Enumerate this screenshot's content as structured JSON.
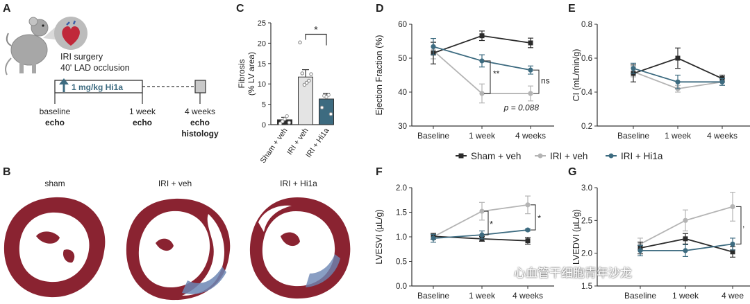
{
  "colors": {
    "sham": "#2b2b2b",
    "veh": "#b4b4b4",
    "hi1a": "#3d6b80",
    "hi1a_bar": "#3d6b80",
    "veh_bar": "#e4e4e4",
    "sham_bar": "#2b2b2b",
    "tissue": "#8a2331",
    "fibrosis": "#6c86b4"
  },
  "panels": {
    "A": {
      "letter": "A",
      "surgery_line1": "IRI surgery",
      "surgery_line2": "40' LAD occlusion",
      "dose": "1 mg/kg Hi1a",
      "t0_line1": "baseline",
      "t0_line2": "echo",
      "t1_line1": "1 week",
      "t1_line2": "echo",
      "t2_line1": "4 weeks",
      "t2_line2": "echo",
      "t2_line3": "histology"
    },
    "B": {
      "letter": "B",
      "labels": [
        "sham",
        "IRI + veh",
        "IRI + Hi1a"
      ]
    },
    "C": {
      "letter": "C"
    },
    "D": {
      "letter": "D"
    },
    "E": {
      "letter": "E"
    },
    "F": {
      "letter": "F"
    },
    "G": {
      "letter": "G"
    }
  },
  "legend": {
    "items": [
      {
        "label": "Sham + veh",
        "color": "#2b2b2b"
      },
      {
        "label": "IRI + veh",
        "color": "#b4b4b4"
      },
      {
        "label": "IRI + Hi1a",
        "color": "#3d6b80"
      }
    ]
  },
  "watermark": "心血管干细胞青年沙龙",
  "chart_data": [
    {
      "id": "C",
      "type": "bar",
      "title": "",
      "ylabel": "Fibrosis\n(% LV area)",
      "ylim": [
        0,
        25
      ],
      "yticks": [
        0,
        5,
        10,
        15,
        20,
        25
      ],
      "categories": [
        "Sham + veh",
        "IRI + veh",
        "IRI + Hi1a"
      ],
      "values": [
        1.2,
        11.7,
        6.3
      ],
      "errors": [
        0.6,
        1.8,
        1.4
      ],
      "points": [
        [
          0.3,
          0.8,
          1.4,
          2.1,
          0.5
        ],
        [
          20.2,
          12.6,
          9.8,
          10.3,
          10.8,
          12.4
        ],
        [
          4.2,
          7.1,
          6.8,
          7.3,
          2.6
        ]
      ],
      "significance": "*"
    },
    {
      "id": "D",
      "type": "line",
      "ylabel": "Ejection Fraction (%)",
      "ylim": [
        30,
        60
      ],
      "yticks": [
        30,
        40,
        50,
        60
      ],
      "categories": [
        "Baseline",
        "1 week",
        "4 weeks"
      ],
      "series": [
        {
          "name": "Sham + veh",
          "values": [
            51.5,
            56.6,
            54.5
          ],
          "errors": [
            3.2,
            1.4,
            1.4
          ]
        },
        {
          "name": "IRI + veh",
          "values": [
            52.2,
            39.6,
            39.6
          ],
          "errors": [
            2.4,
            2.8,
            2.2
          ]
        },
        {
          "name": "IRI + Hi1a",
          "values": [
            53.4,
            49.2,
            46.5
          ],
          "errors": [
            2.4,
            1.8,
            1.2
          ]
        }
      ],
      "annotations": [
        "**",
        "ns",
        "p = 0.088"
      ]
    },
    {
      "id": "E",
      "type": "line",
      "ylabel": "CI (mL/min/g)",
      "ylim": [
        0.2,
        0.8
      ],
      "yticks": [
        0.2,
        0.4,
        0.6,
        0.8
      ],
      "ytick_labels": [
        "0.2",
        "0.4",
        "0.6",
        "0.8"
      ],
      "categories": [
        "Baseline",
        "1 week",
        "4 weeks"
      ],
      "series": [
        {
          "name": "Sham + veh",
          "values": [
            0.51,
            0.6,
            0.48
          ],
          "errors": [
            0.05,
            0.06,
            0.02
          ]
        },
        {
          "name": "IRI + veh",
          "values": [
            0.52,
            0.42,
            0.46
          ],
          "errors": [
            0.03,
            0.02,
            0.02
          ]
        },
        {
          "name": "IRI + Hi1a",
          "values": [
            0.54,
            0.46,
            0.46
          ],
          "errors": [
            0.03,
            0.04,
            0.02
          ]
        }
      ]
    },
    {
      "id": "F",
      "type": "line",
      "ylabel": "LVESVI (µL/g)",
      "ylim": [
        0.0,
        2.0
      ],
      "yticks": [
        0.0,
        0.5,
        1.0,
        1.5,
        2.0
      ],
      "ytick_labels": [
        "0.0",
        "0.5",
        "1.0",
        "1.5",
        "2.0"
      ],
      "categories": [
        "Baseline",
        "1 week",
        "4 weeks"
      ],
      "series": [
        {
          "name": "Sham + veh",
          "values": [
            1.01,
            0.96,
            0.92
          ],
          "errors": [
            0.06,
            0.05,
            0.07
          ]
        },
        {
          "name": "IRI + veh",
          "values": [
            1.0,
            1.52,
            1.65
          ],
          "errors": [
            0.05,
            0.18,
            0.18
          ]
        },
        {
          "name": "IRI + Hi1a",
          "values": [
            0.97,
            1.04,
            1.14
          ],
          "errors": [
            0.08,
            0.08,
            0.02
          ]
        }
      ],
      "annotations": [
        "*",
        "*"
      ]
    },
    {
      "id": "G",
      "type": "line",
      "ylabel": "LVEDVI (µL/g)",
      "ylim": [
        1.5,
        3.0
      ],
      "yticks": [
        1.5,
        2.0,
        2.5,
        3.0
      ],
      "ytick_labels": [
        "1.5",
        "2.0",
        "2.5",
        "3.0"
      ],
      "categories": [
        "Baseline",
        "1 week",
        "4 wee"
      ],
      "series": [
        {
          "name": "Sham + veh",
          "values": [
            2.08,
            2.22,
            2.02
          ],
          "errors": [
            0.09,
            0.08,
            0.08
          ]
        },
        {
          "name": "IRI + veh",
          "values": [
            2.14,
            2.5,
            2.71
          ],
          "errors": [
            0.09,
            0.16,
            0.22
          ]
        },
        {
          "name": "IRI + Hi1a",
          "values": [
            2.04,
            2.04,
            2.14
          ],
          "errors": [
            0.08,
            0.09,
            0.09
          ]
        }
      ],
      "annotations": [
        ","
      ]
    }
  ]
}
